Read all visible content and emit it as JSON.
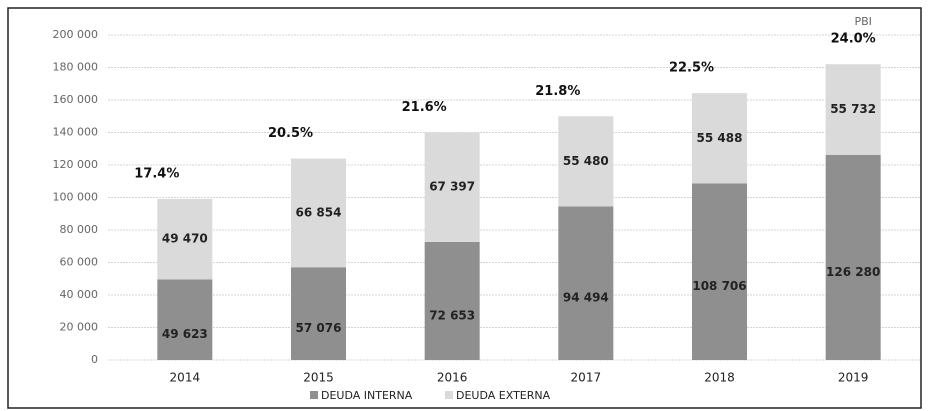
{
  "chart_data": {
    "type": "stacked_bar",
    "categories": [
      "2014",
      "2015",
      "2016",
      "2017",
      "2018",
      "2019"
    ],
    "series": [
      {
        "name": "DEUDA INTERNA",
        "color": "#8f8f8f",
        "values": [
          49623,
          57076,
          72653,
          94494,
          108706,
          126280
        ],
        "value_labels": [
          "49 623",
          "57 076",
          "72 653",
          "94 494",
          "108 706",
          "126 280"
        ]
      },
      {
        "name": "DEUDA EXTERNA",
        "color": "#dadada",
        "values": [
          49470,
          66854,
          67397,
          55480,
          55488,
          55732
        ],
        "value_labels": [
          "49 470",
          "66 854",
          "67 397",
          "55 480",
          "55 488",
          "55 732"
        ]
      }
    ],
    "annotations": {
      "name": "PBI",
      "values": [
        17.4,
        20.5,
        21.6,
        21.8,
        22.5,
        24.0
      ],
      "value_labels": [
        "17.4%",
        "20.5%",
        "21.6%",
        "21.8%",
        "22.5%",
        "24.0%"
      ]
    },
    "ylim": [
      0,
      200000
    ],
    "yticks": [
      0,
      {
        "value": 20000,
        "label": "20 000"
      },
      {
        "value": 40000,
        "label": "40 000"
      },
      {
        "value": 60000,
        "label": "60 000"
      },
      {
        "value": 80000,
        "label": "80 000"
      },
      {
        "value": 100000,
        "label": "100 000"
      },
      {
        "value": 120000,
        "label": "120 000"
      },
      {
        "value": 140000,
        "label": "140 000"
      },
      {
        "value": 160000,
        "label": "160 000"
      },
      {
        "value": 180000,
        "label": "180 000"
      },
      {
        "value": 200000,
        "label": "200 000"
      }
    ],
    "grid": true,
    "legend": "bottom"
  }
}
